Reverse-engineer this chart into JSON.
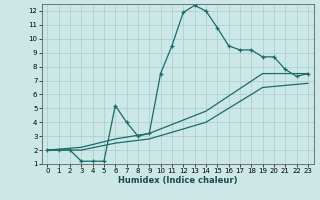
{
  "xlabel": "Humidex (Indice chaleur)",
  "xlim": [
    -0.5,
    23.5
  ],
  "ylim": [
    1,
    12.5
  ],
  "xticks": [
    0,
    1,
    2,
    3,
    4,
    5,
    6,
    7,
    8,
    9,
    10,
    11,
    12,
    13,
    14,
    15,
    16,
    17,
    18,
    19,
    20,
    21,
    22,
    23
  ],
  "yticks": [
    1,
    2,
    3,
    4,
    5,
    6,
    7,
    8,
    9,
    10,
    11,
    12
  ],
  "background_color": "#cce8e6",
  "grid_color": "#b0cfcd",
  "line_color": "#1a6b6b",
  "line1_x": [
    0,
    1,
    2,
    3,
    4,
    5,
    6,
    7,
    8,
    9,
    10,
    11,
    12,
    13,
    14,
    15,
    16,
    17,
    18,
    19,
    20,
    21,
    22,
    23
  ],
  "line1_y": [
    2.0,
    2.0,
    2.0,
    1.2,
    1.2,
    1.2,
    5.2,
    4.0,
    3.0,
    3.2,
    7.5,
    9.5,
    11.9,
    12.4,
    12.0,
    10.8,
    9.5,
    9.2,
    9.2,
    8.7,
    8.7,
    7.8,
    7.3,
    7.5
  ],
  "line2_x": [
    0,
    3,
    6,
    9,
    14,
    19,
    23
  ],
  "line2_y": [
    2.0,
    2.2,
    2.8,
    3.2,
    4.8,
    7.5,
    7.5
  ],
  "line3_x": [
    0,
    3,
    6,
    9,
    14,
    19,
    23
  ],
  "line3_y": [
    2.0,
    2.0,
    2.5,
    2.8,
    4.0,
    6.5,
    6.8
  ]
}
